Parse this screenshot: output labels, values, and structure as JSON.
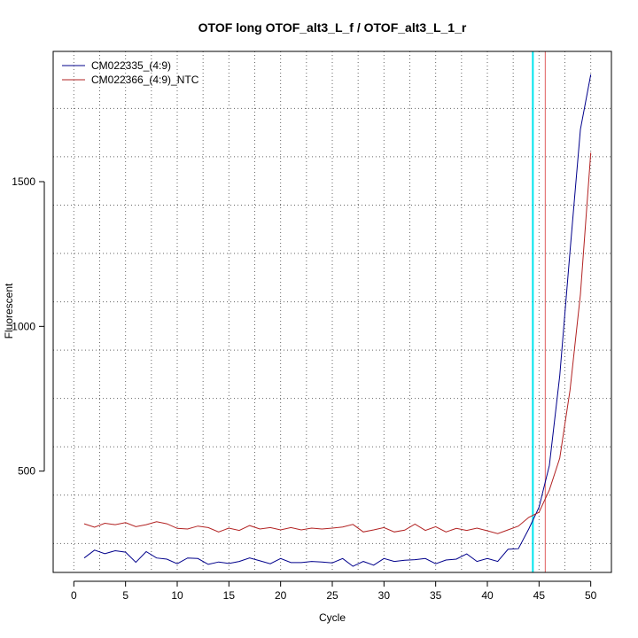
{
  "chart_data": {
    "type": "line",
    "title": "OTOF long OTOF_alt3_L_f / OTOF_alt3_L_1_r",
    "xlabel": "Cycle",
    "ylabel": "Fluorescent",
    "xlim": [
      -2,
      52
    ],
    "ylim": [
      150,
      1950
    ],
    "x_ticks": [
      0,
      5,
      10,
      15,
      20,
      25,
      30,
      35,
      40,
      45,
      50
    ],
    "y_ticks": [
      500,
      1000,
      1500
    ],
    "grid": true,
    "grid_style": "dotted",
    "legend_position": "top-left",
    "x": [
      1,
      2,
      3,
      4,
      5,
      6,
      7,
      8,
      9,
      10,
      11,
      12,
      13,
      14,
      15,
      16,
      17,
      18,
      19,
      20,
      21,
      22,
      23,
      24,
      25,
      26,
      27,
      28,
      29,
      30,
      31,
      32,
      33,
      34,
      35,
      36,
      37,
      38,
      39,
      40,
      41,
      42,
      43,
      44,
      45,
      46,
      47,
      48,
      49,
      50
    ],
    "series": [
      {
        "name": "CM022335_(4:9)",
        "color": "#00008b",
        "values": [
          200,
          227,
          215,
          225,
          220,
          185,
          222,
          200,
          196,
          180,
          200,
          198,
          178,
          186,
          181,
          188,
          200,
          190,
          180,
          198,
          184,
          184,
          188,
          186,
          183,
          198,
          171,
          188,
          175,
          198,
          188,
          192,
          194,
          198,
          180,
          193,
          196,
          214,
          188,
          198,
          188,
          230,
          232,
          300,
          375,
          520,
          830,
          1260,
          1680,
          1870
        ]
      },
      {
        "name": "CM022366_(4:9)_NTC",
        "color": "#b22222",
        "values": [
          318,
          306,
          320,
          315,
          322,
          308,
          315,
          325,
          318,
          302,
          300,
          310,
          305,
          290,
          303,
          295,
          312,
          300,
          305,
          297,
          305,
          297,
          303,
          300,
          303,
          307,
          316,
          290,
          297,
          305,
          290,
          296,
          317,
          295,
          308,
          290,
          302,
          295,
          303,
          294,
          284,
          297,
          310,
          340,
          358,
          435,
          545,
          780,
          1110,
          1600
        ]
      }
    ],
    "vlines": [
      {
        "x": 44.4,
        "color": "#00e5ee"
      },
      {
        "x": 45.6,
        "color": "#e06060"
      }
    ]
  }
}
